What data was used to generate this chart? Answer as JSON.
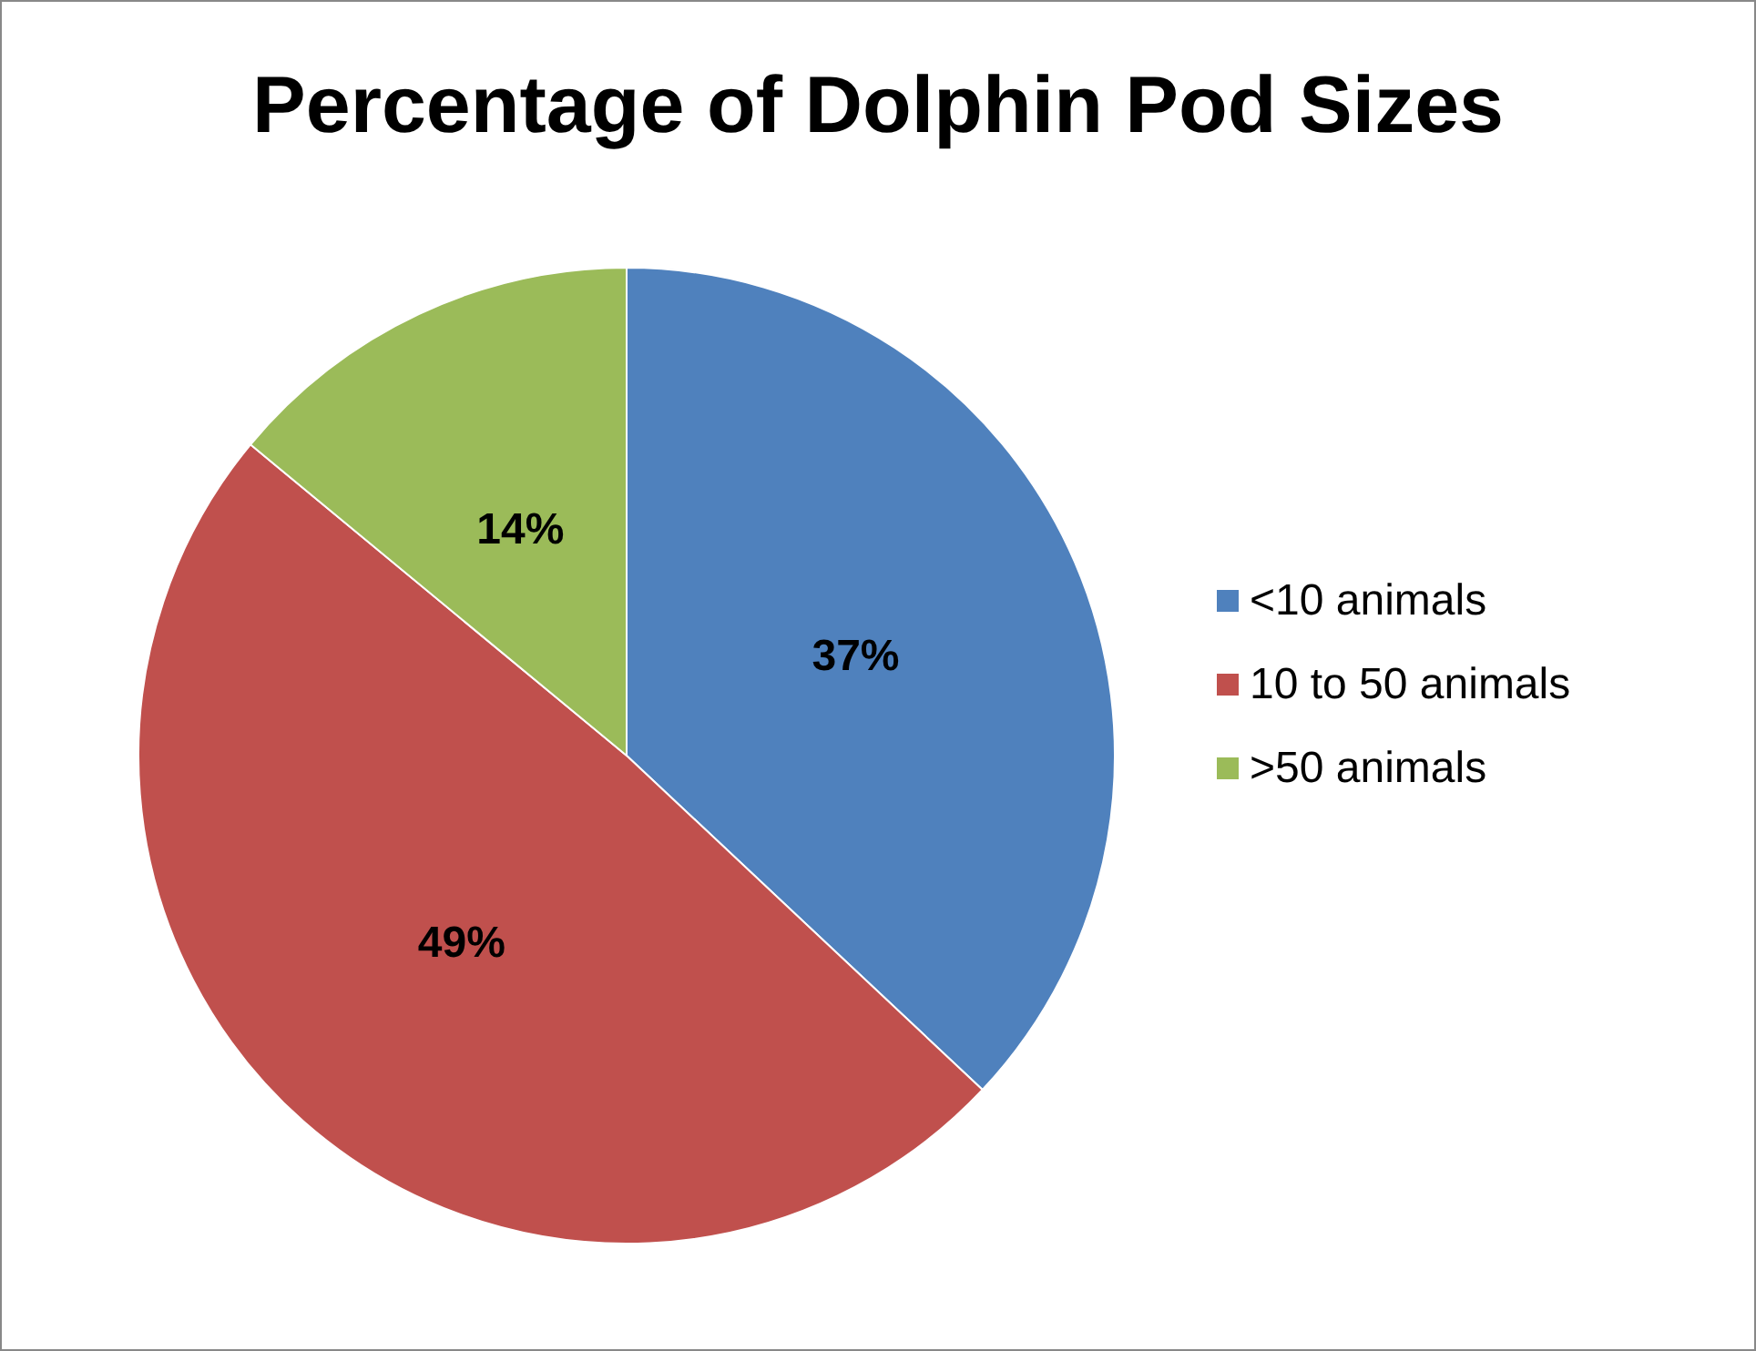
{
  "chart_data": {
    "type": "pie",
    "title": "Percentage of Dolphin Pod Sizes",
    "categories": [
      "<10 animals",
      "10 to 50 animals",
      ">50 animals"
    ],
    "values": [
      37,
      49,
      14
    ],
    "colors": [
      "#4f81bd",
      "#c0504d",
      "#9bbb59"
    ],
    "value_labels": [
      "37%",
      "49%",
      "14%"
    ],
    "legend": "right"
  }
}
